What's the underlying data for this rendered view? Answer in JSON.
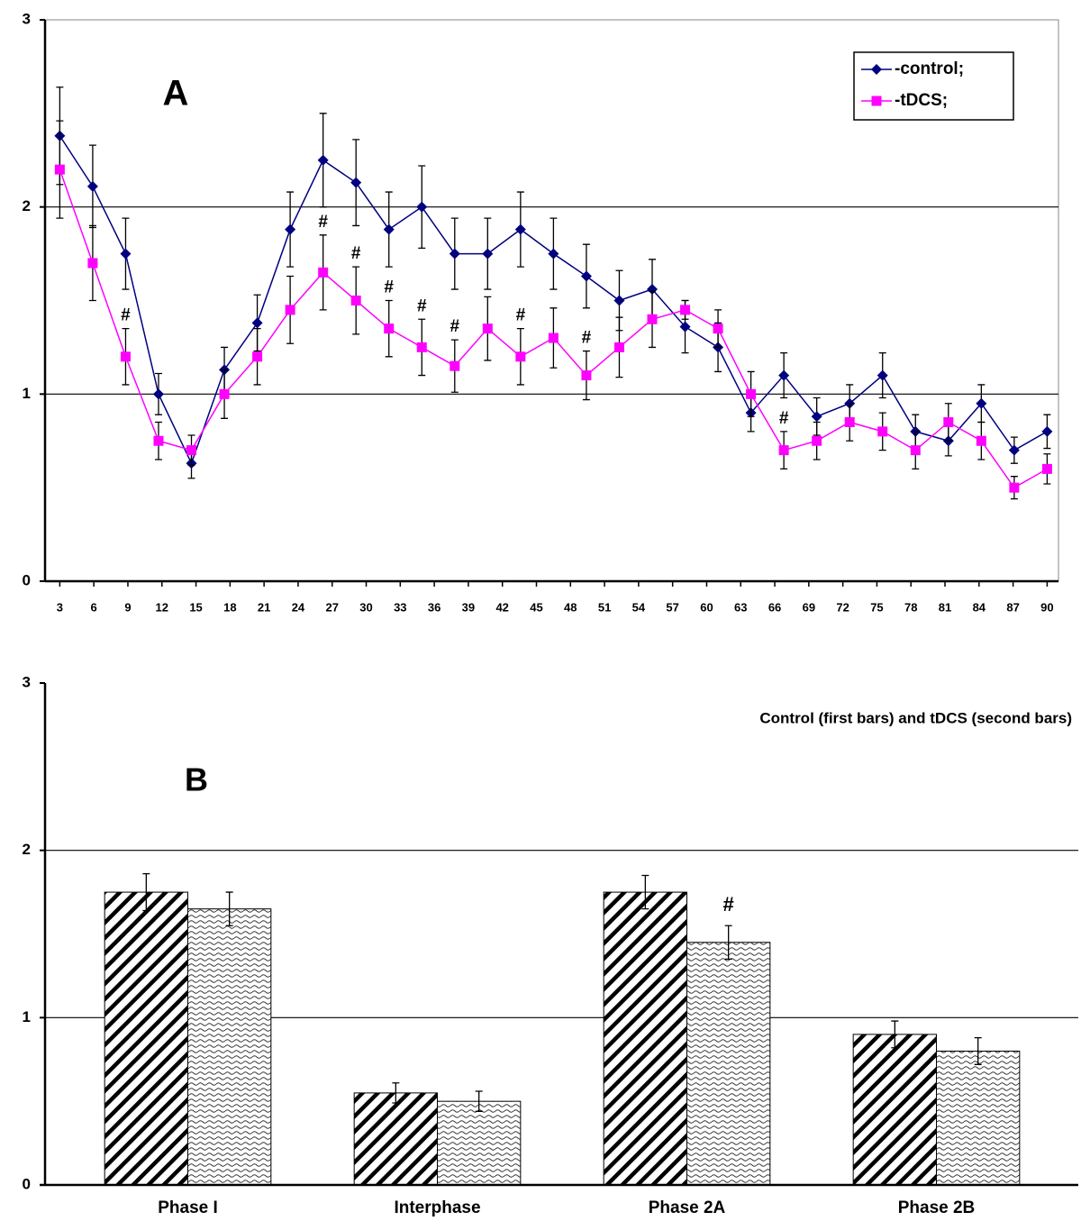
{
  "chart_data": [
    {
      "type": "line",
      "panel_label": "A",
      "x": [
        3,
        5.9,
        8.8,
        11.7,
        14.6,
        17.5,
        20.4,
        23.3,
        26.2,
        29.1,
        32,
        34.9,
        37.8,
        40.7,
        43.6,
        46.5,
        49.4,
        52.3,
        55.2,
        58.1,
        61,
        63.9,
        66.8,
        69.7,
        72.6,
        75.5,
        78.4,
        81.3,
        84.2,
        87.1,
        90
      ],
      "xlim": [
        1.7,
        91
      ],
      "xticks": [
        3,
        6,
        9,
        12,
        15,
        18,
        21,
        24,
        27,
        30,
        33,
        36,
        39,
        42,
        45,
        48,
        51,
        54,
        57,
        60,
        63,
        66,
        69,
        72,
        75,
        78,
        81,
        84,
        87,
        90
      ],
      "ylim": [
        0,
        3
      ],
      "yticks": [
        0,
        1,
        2,
        3
      ],
      "grid": true,
      "legend": "top-right",
      "series": [
        {
          "name": "-control;",
          "color": "#000080",
          "marker": "diamond",
          "values": [
            2.38,
            2.11,
            1.75,
            1.0,
            0.63,
            1.13,
            1.38,
            1.88,
            2.25,
            2.13,
            1.88,
            2.0,
            1.75,
            1.75,
            1.88,
            1.75,
            1.63,
            1.5,
            1.56,
            1.36,
            1.25,
            0.9,
            1.1,
            0.88,
            0.95,
            1.1,
            0.8,
            0.75,
            0.95,
            0.7,
            0.8
          ],
          "errors": [
            0.26,
            0.22,
            0.19,
            0.11,
            0.08,
            0.12,
            0.15,
            0.2,
            0.25,
            0.23,
            0.2,
            0.22,
            0.19,
            0.19,
            0.2,
            0.19,
            0.17,
            0.16,
            0.16,
            0.14,
            0.13,
            0.1,
            0.12,
            0.1,
            0.1,
            0.12,
            0.09,
            0.08,
            0.1,
            0.07,
            0.09
          ]
        },
        {
          "name": "-tDCS;",
          "color": "#ff00ff",
          "marker": "square",
          "values": [
            2.2,
            1.7,
            1.2,
            0.75,
            0.7,
            1.0,
            1.2,
            1.45,
            1.65,
            1.5,
            1.35,
            1.25,
            1.15,
            1.35,
            1.2,
            1.3,
            1.1,
            1.25,
            1.4,
            1.45,
            1.35,
            1.0,
            0.7,
            0.75,
            0.85,
            0.8,
            0.7,
            0.85,
            0.75,
            0.5,
            0.6
          ],
          "errors": [
            0.26,
            0.2,
            0.15,
            0.1,
            0.08,
            0.13,
            0.15,
            0.18,
            0.2,
            0.18,
            0.15,
            0.15,
            0.14,
            0.17,
            0.15,
            0.16,
            0.13,
            0.16,
            0.15,
            0.05,
            0.1,
            0.12,
            0.1,
            0.1,
            0.1,
            0.1,
            0.1,
            0.1,
            0.1,
            0.06,
            0.08
          ],
          "annotations": [
            null,
            null,
            "#",
            null,
            null,
            null,
            null,
            null,
            "#",
            "#",
            "#",
            "#",
            "#",
            null,
            "#",
            null,
            "#",
            null,
            null,
            null,
            null,
            null,
            "#",
            null,
            null,
            null,
            null,
            null,
            null,
            null,
            null
          ]
        }
      ]
    },
    {
      "type": "bar",
      "panel_label": "B",
      "subtitle": "Control (first bars) and tDCS (second bars)",
      "categories": [
        "Phase I",
        "Interphase",
        "Phase 2A",
        "Phase 2B"
      ],
      "ylim": [
        0,
        3
      ],
      "yticks": [
        0,
        1,
        2,
        3
      ],
      "grid": true,
      "series": [
        {
          "pattern": "diagonal",
          "color": "#000000",
          "values": [
            1.75,
            0.55,
            1.75,
            0.9
          ],
          "errors": [
            0.11,
            0.06,
            0.1,
            0.08
          ]
        },
        {
          "pattern": "wave",
          "color": "#000000",
          "values": [
            1.65,
            0.5,
            1.45,
            0.8
          ],
          "errors": [
            0.1,
            0.06,
            0.1,
            0.08
          ],
          "annotations": [
            null,
            null,
            "#",
            null
          ]
        }
      ]
    }
  ]
}
